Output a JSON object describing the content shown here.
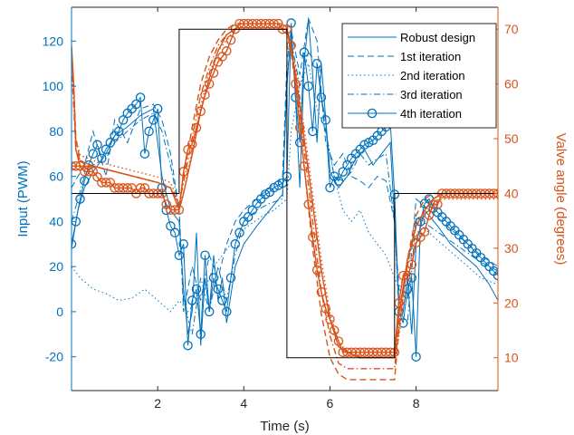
{
  "chart_data": {
    "type": "line",
    "xlabel": "Time (s)",
    "ylabel_left": "Input (PWM)",
    "ylabel_right": "Valve angle (degrees)",
    "xlim": [
      0,
      9.9
    ],
    "ylim_left": [
      -35,
      135
    ],
    "ylim_right": [
      4,
      74
    ],
    "xticks": [
      2,
      4,
      6,
      8
    ],
    "yticks_left": [
      -20,
      0,
      20,
      40,
      60,
      80,
      100,
      120
    ],
    "yticks_right": [
      10,
      20,
      30,
      40,
      50,
      60,
      70
    ],
    "grid": false,
    "legend_position": "top-right",
    "colors": {
      "input": "#0072BD",
      "angle": "#D95319",
      "reference": "#000000",
      "axis": "#262626"
    },
    "legend": [
      {
        "label": "Robust design",
        "style": "solid"
      },
      {
        "label": "1st iteration",
        "style": "dashed"
      },
      {
        "label": "2nd iteration",
        "style": "dotted"
      },
      {
        "label": "3rd iteration",
        "style": "dashdot"
      },
      {
        "label": "4th iteration",
        "style": "circle"
      }
    ],
    "reference": {
      "axis": "right",
      "x": [
        0,
        2.5,
        2.5,
        5.0,
        5.0,
        7.5,
        7.5,
        9.9
      ],
      "y": [
        40,
        40,
        70,
        70,
        10,
        10,
        40,
        40
      ]
    },
    "input_series": [
      {
        "name": "Robust design",
        "style": "solid",
        "x": [
          0,
          0.15,
          0.3,
          0.5,
          0.8,
          1.0,
          1.3,
          1.6,
          1.9,
          2.1,
          2.3,
          2.5,
          2.6,
          2.7,
          2.8,
          2.9,
          3.0,
          3.1,
          3.2,
          3.3,
          3.4,
          3.5,
          3.6,
          3.8,
          4.0,
          4.3,
          4.6,
          4.9,
          5.0,
          5.1,
          5.2,
          5.3,
          5.4,
          5.5,
          5.6,
          5.7,
          5.8,
          6.0,
          6.2,
          6.4,
          6.6,
          6.8,
          7.0,
          7.2,
          7.4,
          7.5,
          7.6,
          7.7,
          7.8,
          7.9,
          8.0,
          8.2,
          8.5,
          8.8,
          9.1,
          9.4,
          9.7,
          9.9
        ],
        "y": [
          28,
          45,
          55,
          62,
          70,
          78,
          82,
          87,
          90,
          60,
          45,
          40,
          10,
          -10,
          0,
          35,
          -15,
          15,
          0,
          25,
          5,
          15,
          -5,
          20,
          30,
          38,
          45,
          52,
          100,
          125,
          95,
          55,
          110,
          130,
          105,
          75,
          110,
          62,
          55,
          60,
          68,
          72,
          65,
          70,
          75,
          40,
          5,
          0,
          15,
          -10,
          30,
          45,
          38,
          30,
          25,
          20,
          12,
          5
        ]
      },
      {
        "name": "1st iteration",
        "style": "dashed",
        "x": [
          0,
          0.15,
          0.3,
          0.5,
          0.8,
          1.0,
          1.3,
          1.6,
          1.9,
          2.1,
          2.3,
          2.5,
          2.6,
          2.8,
          3.0,
          3.2,
          3.4,
          3.6,
          3.8,
          4.0,
          4.3,
          4.6,
          4.9,
          5.0,
          5.1,
          5.3,
          5.5,
          5.7,
          5.9,
          6.1,
          6.3,
          6.5,
          6.7,
          6.9,
          7.1,
          7.3,
          7.5,
          7.6,
          7.8,
          8.0,
          8.3,
          8.6,
          8.9,
          9.2,
          9.5,
          9.9
        ],
        "y": [
          55,
          60,
          65,
          80,
          60,
          85,
          75,
          90,
          92,
          85,
          70,
          45,
          0,
          20,
          5,
          25,
          15,
          30,
          40,
          45,
          50,
          55,
          60,
          110,
          125,
          105,
          130,
          120,
          75,
          65,
          70,
          60,
          58,
          55,
          60,
          58,
          40,
          10,
          5,
          50,
          45,
          40,
          35,
          30,
          25,
          20
        ]
      },
      {
        "name": "2nd iteration",
        "style": "dotted",
        "x": [
          0,
          0.2,
          0.5,
          0.8,
          1.1,
          1.4,
          1.7,
          2.0,
          2.3,
          2.5,
          2.7,
          2.9,
          3.1,
          3.3,
          3.5,
          3.7,
          3.9,
          4.1,
          4.4,
          4.7,
          5.0,
          5.1,
          5.3,
          5.5,
          5.7,
          5.9,
          6.1,
          6.3,
          6.5,
          6.7,
          6.9,
          7.1,
          7.3,
          7.5,
          7.6,
          7.8,
          8.0,
          8.3,
          8.6,
          8.9,
          9.2,
          9.5,
          9.9
        ],
        "y": [
          20,
          15,
          10,
          8,
          5,
          6,
          10,
          5,
          0,
          5,
          0,
          5,
          10,
          20,
          25,
          30,
          35,
          38,
          42,
          45,
          50,
          80,
          100,
          110,
          90,
          80,
          60,
          45,
          40,
          45,
          35,
          30,
          25,
          15,
          10,
          20,
          40,
          35,
          30,
          25,
          20,
          15,
          12
        ]
      },
      {
        "name": "3rd iteration",
        "style": "dashdot",
        "x": [
          0,
          0.15,
          0.3,
          0.5,
          0.8,
          1.0,
          1.3,
          1.6,
          1.9,
          2.1,
          2.3,
          2.5,
          2.6,
          2.8,
          3.0,
          3.2,
          3.4,
          3.6,
          3.8,
          4.0,
          4.3,
          4.6,
          4.9,
          5.0,
          5.1,
          5.3,
          5.5,
          5.7,
          5.9,
          6.1,
          6.3,
          6.5,
          6.7,
          6.9,
          7.1,
          7.3,
          7.5,
          7.6,
          7.8,
          8.0,
          8.3,
          8.6,
          8.9,
          9.2,
          9.5,
          9.9
        ],
        "y": [
          40,
          50,
          60,
          65,
          68,
          75,
          80,
          85,
          88,
          80,
          65,
          45,
          5,
          -10,
          15,
          0,
          20,
          5,
          25,
          40,
          45,
          48,
          50,
          105,
          120,
          100,
          115,
          110,
          80,
          60,
          58,
          62,
          70,
          65,
          68,
          70,
          40,
          0,
          -5,
          42,
          38,
          34,
          30,
          26,
          22,
          18
        ]
      },
      {
        "name": "4th iteration",
        "style": "circle",
        "x": [
          0,
          0.1,
          0.2,
          0.3,
          0.4,
          0.5,
          0.6,
          0.7,
          0.8,
          0.9,
          1.0,
          1.1,
          1.2,
          1.3,
          1.4,
          1.5,
          1.6,
          1.7,
          1.8,
          1.9,
          2.0,
          2.1,
          2.2,
          2.3,
          2.4,
          2.5,
          2.6,
          2.7,
          2.8,
          2.9,
          3.0,
          3.1,
          3.2,
          3.3,
          3.4,
          3.5,
          3.6,
          3.7,
          3.8,
          3.9,
          4.0,
          4.1,
          4.2,
          4.3,
          4.4,
          4.5,
          4.6,
          4.7,
          4.8,
          4.9,
          5.0,
          5.1,
          5.2,
          5.3,
          5.4,
          5.5,
          5.6,
          5.7,
          5.8,
          5.9,
          6.0,
          6.1,
          6.2,
          6.3,
          6.4,
          6.5,
          6.6,
          6.7,
          6.8,
          6.9,
          7.0,
          7.1,
          7.2,
          7.3,
          7.4,
          7.5,
          7.6,
          7.7,
          7.8,
          7.9,
          8.0,
          8.1,
          8.2,
          8.3,
          8.4,
          8.5,
          8.6,
          8.7,
          8.8,
          8.9,
          9.0,
          9.1,
          9.2,
          9.3,
          9.4,
          9.5,
          9.6,
          9.7,
          9.8,
          9.9
        ],
        "y": [
          30,
          40,
          50,
          58,
          65,
          70,
          74,
          68,
          72,
          75,
          78,
          80,
          85,
          88,
          90,
          92,
          95,
          70,
          80,
          85,
          90,
          55,
          45,
          38,
          35,
          25,
          30,
          -15,
          5,
          10,
          -10,
          25,
          0,
          15,
          10,
          5,
          0,
          15,
          30,
          35,
          40,
          42,
          45,
          48,
          50,
          52,
          53,
          55,
          56,
          57,
          60,
          128,
          95,
          75,
          115,
          100,
          80,
          110,
          95,
          85,
          55,
          60,
          58,
          62,
          65,
          68,
          70,
          72,
          74,
          75,
          76,
          78,
          80,
          82,
          84,
          52,
          0,
          -5,
          10,
          15,
          -20,
          40,
          48,
          50,
          46,
          44,
          42,
          40,
          38,
          36,
          34,
          32,
          30,
          28,
          26,
          24,
          22,
          20,
          18,
          16
        ]
      }
    ],
    "angle_series": [
      {
        "name": "Robust design",
        "style": "solid",
        "x": [
          0,
          0.05,
          0.1,
          0.2,
          0.5,
          1.0,
          1.5,
          2.0,
          2.3,
          2.5,
          2.6,
          2.8,
          3.0,
          3.2,
          3.4,
          3.6,
          3.8,
          4.0,
          4.5,
          4.9,
          5.0,
          5.2,
          5.4,
          5.6,
          5.8,
          6.0,
          6.2,
          6.4,
          6.7,
          7.0,
          7.5,
          7.6,
          7.8,
          8.0,
          8.2,
          8.4,
          8.6,
          9.0,
          9.5,
          9.9
        ],
        "y": [
          67,
          60,
          48,
          45,
          45,
          44,
          43,
          42,
          41,
          37,
          40,
          47,
          55,
          61,
          66,
          69,
          70,
          70,
          70,
          70,
          70,
          62,
          50,
          38,
          26,
          17,
          12,
          11,
          10,
          10,
          10,
          18,
          28,
          34,
          37,
          39,
          40,
          40,
          40,
          40
        ]
      },
      {
        "name": "1st iteration",
        "style": "dashed",
        "x": [
          0,
          0.05,
          0.1,
          0.2,
          0.5,
          1.0,
          1.5,
          2.0,
          2.3,
          2.5,
          2.6,
          2.8,
          3.0,
          3.2,
          3.4,
          3.6,
          3.8,
          4.0,
          4.5,
          4.9,
          5.0,
          5.2,
          5.4,
          5.6,
          5.8,
          6.0,
          6.2,
          6.4,
          6.7,
          7.0,
          7.5,
          7.6,
          7.8,
          8.0,
          8.2,
          8.4,
          8.6,
          9.0,
          9.5,
          9.9
        ],
        "y": [
          66,
          60,
          50,
          46,
          45,
          44,
          43,
          42,
          41,
          38,
          43,
          52,
          60,
          65,
          68,
          70,
          71,
          71,
          71,
          71,
          71,
          60,
          45,
          30,
          18,
          10,
          7,
          6,
          6,
          6,
          6,
          15,
          28,
          36,
          39,
          40,
          40,
          40,
          40,
          40
        ]
      },
      {
        "name": "2nd iteration",
        "style": "dotted",
        "x": [
          0,
          0.05,
          0.1,
          0.2,
          0.5,
          1.0,
          1.5,
          2.0,
          2.3,
          2.5,
          2.6,
          2.8,
          3.0,
          3.2,
          3.4,
          3.6,
          3.8,
          4.0,
          4.5,
          4.9,
          5.0,
          5.2,
          5.4,
          5.6,
          5.8,
          6.0,
          6.2,
          6.4,
          6.7,
          7.0,
          7.5,
          7.6,
          7.8,
          8.0,
          8.2,
          8.4,
          8.6,
          9.0,
          9.5,
          9.9
        ],
        "y": [
          65,
          58,
          50,
          47,
          46,
          45,
          44,
          43,
          42,
          38,
          40,
          48,
          56,
          62,
          66,
          68,
          70,
          70,
          70,
          70,
          70,
          63,
          52,
          40,
          28,
          18,
          13,
          11,
          10,
          10,
          10,
          14,
          24,
          32,
          36,
          38,
          39,
          39,
          39,
          39
        ]
      },
      {
        "name": "3rd iteration",
        "style": "dashdot",
        "x": [
          0,
          0.05,
          0.1,
          0.2,
          0.5,
          1.0,
          1.5,
          2.0,
          2.3,
          2.5,
          2.6,
          2.8,
          3.0,
          3.2,
          3.4,
          3.6,
          3.8,
          4.0,
          4.5,
          4.9,
          5.0,
          5.2,
          5.4,
          5.6,
          5.8,
          6.0,
          6.2,
          6.4,
          6.7,
          7.0,
          7.5,
          7.6,
          7.8,
          8.0,
          8.2,
          8.4,
          8.6,
          9.0,
          9.5,
          9.9
        ],
        "y": [
          64,
          56,
          48,
          46,
          45,
          44,
          43,
          42,
          41,
          38,
          42,
          50,
          58,
          63,
          67,
          69,
          70,
          70,
          70,
          70,
          70,
          61,
          48,
          35,
          22,
          14,
          9,
          8,
          8,
          8,
          8,
          16,
          27,
          34,
          37,
          39,
          40,
          40,
          40,
          40
        ]
      },
      {
        "name": "4th iteration",
        "style": "circle",
        "x": [
          0,
          0.1,
          0.2,
          0.3,
          0.4,
          0.5,
          0.6,
          0.7,
          0.8,
          0.9,
          1.0,
          1.1,
          1.2,
          1.3,
          1.4,
          1.5,
          1.6,
          1.7,
          1.8,
          1.9,
          2.0,
          2.1,
          2.2,
          2.3,
          2.4,
          2.5,
          2.6,
          2.7,
          2.8,
          2.9,
          3.0,
          3.1,
          3.2,
          3.3,
          3.4,
          3.5,
          3.6,
          3.7,
          3.8,
          3.9,
          4.0,
          4.1,
          4.2,
          4.3,
          4.4,
          4.5,
          4.6,
          4.7,
          4.8,
          4.9,
          5.0,
          5.1,
          5.2,
          5.3,
          5.4,
          5.5,
          5.6,
          5.7,
          5.8,
          5.9,
          6.0,
          6.1,
          6.2,
          6.3,
          6.4,
          6.5,
          6.6,
          6.7,
          6.8,
          6.9,
          7.0,
          7.1,
          7.2,
          7.3,
          7.4,
          7.5,
          7.6,
          7.7,
          7.8,
          7.9,
          8.0,
          8.1,
          8.2,
          8.3,
          8.4,
          8.5,
          8.6,
          8.7,
          8.8,
          8.9,
          9.0,
          9.1,
          9.2,
          9.3,
          9.4,
          9.5,
          9.6,
          9.7,
          9.8,
          9.9
        ],
        "y": [
          45,
          45,
          45,
          44,
          44,
          44,
          43,
          42,
          42,
          42,
          41,
          41,
          41,
          41,
          41,
          40,
          41,
          41,
          40,
          40,
          40,
          40,
          38,
          37,
          37,
          37,
          44,
          48,
          49,
          52,
          55,
          58,
          60,
          62,
          64,
          65,
          66,
          68,
          70,
          71,
          71,
          71,
          71,
          71,
          71,
          71,
          71,
          71,
          71,
          70,
          70,
          67,
          60,
          52,
          45,
          38,
          32,
          26,
          22,
          19,
          17,
          15,
          13,
          11,
          11,
          11,
          11,
          11,
          11,
          11,
          11,
          11,
          11,
          11,
          11,
          11,
          20,
          25,
          25,
          27,
          31,
          32,
          33,
          36,
          38,
          38,
          40,
          40,
          40,
          40,
          40,
          40,
          40,
          40,
          40,
          40,
          40,
          40,
          40,
          40
        ]
      }
    ]
  }
}
